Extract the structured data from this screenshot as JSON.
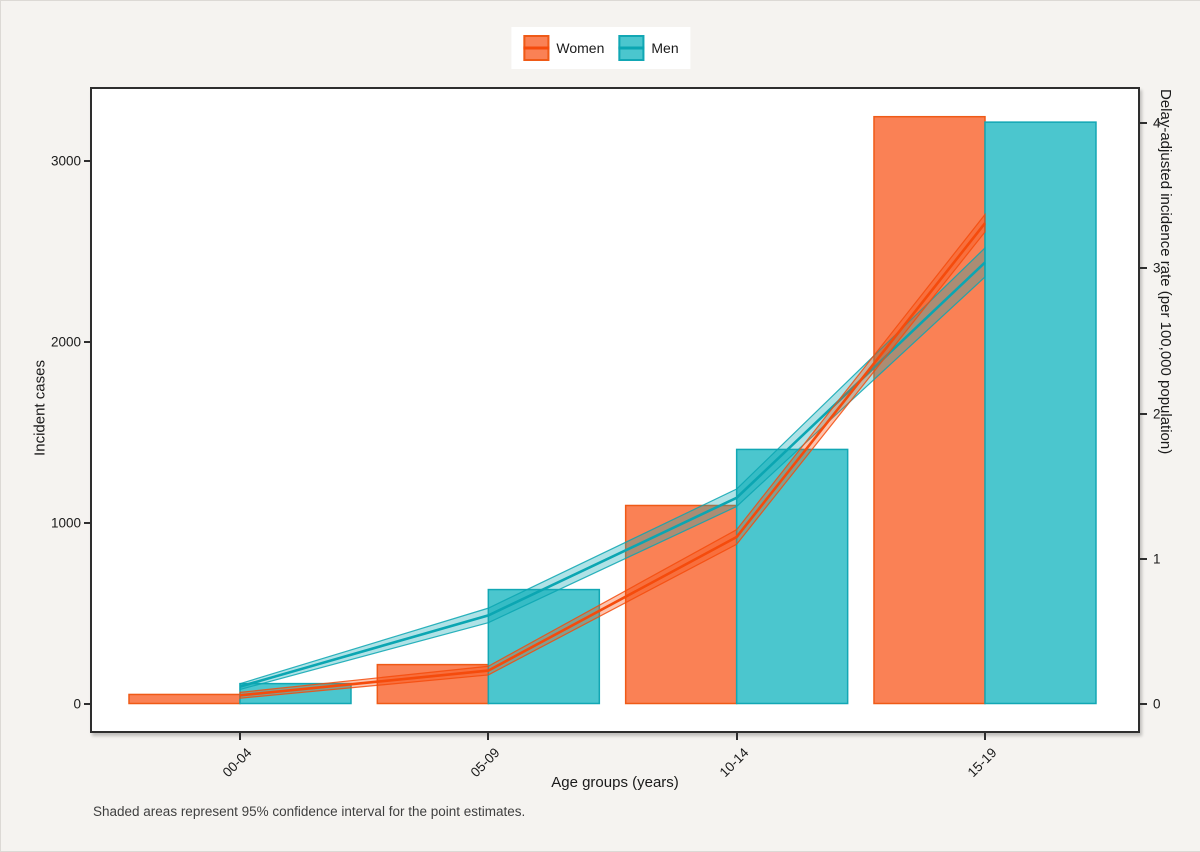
{
  "figure": {
    "legend": {
      "items": [
        {
          "label": "Women"
        },
        {
          "label": "Men"
        }
      ]
    },
    "axis_left": {
      "title": "Incident cases"
    },
    "axis_right": {
      "title": "Delay-adjusted incidence rate (per 100,000 population)"
    },
    "axis_x": {
      "title": "Age groups (years)"
    },
    "caption": "Shaded areas represent 95% confidence interval for the point estimates."
  },
  "colors": {
    "women_fill": "#FA8155",
    "women_stroke": "#EF5A17",
    "women_line": "#F54B0C",
    "men_fill": "#4BC6CE",
    "men_stroke": "#12A7B4",
    "men_line": "#0BA6B2",
    "panel_border": "#2E2E2E",
    "background": "#F5F3F0"
  },
  "chart_data": {
    "type": "bar+line dual-axis",
    "categories": [
      "00-04",
      "05-09",
      "10-14",
      "15-19"
    ],
    "bar_series": [
      {
        "name": "Women",
        "axis": "left",
        "values": [
          50,
          215,
          1095,
          3245
        ]
      },
      {
        "name": "Men",
        "axis": "left",
        "values": [
          110,
          630,
          1405,
          3215
        ]
      }
    ],
    "line_series": [
      {
        "name": "Women",
        "axis": "right",
        "values": [
          0.06,
          0.23,
          1.15,
          3.31
        ],
        "ci_lower": [
          0.04,
          0.2,
          1.1,
          3.25
        ],
        "ci_upper": [
          0.08,
          0.26,
          1.2,
          3.37
        ]
      },
      {
        "name": "Men",
        "axis": "right",
        "values": [
          0.12,
          0.61,
          1.42,
          3.04
        ],
        "ci_lower": [
          0.1,
          0.56,
          1.36,
          2.94
        ],
        "ci_upper": [
          0.14,
          0.66,
          1.48,
          3.14
        ]
      }
    ],
    "left_axis": {
      "label": "Incident cases",
      "ticks": [
        0,
        1000,
        2000,
        3000
      ],
      "ylim": [
        0,
        3340
      ]
    },
    "right_axis": {
      "label": "Delay-adjusted incidence rate (per 100,000 population)",
      "ticks": [
        0,
        1,
        2,
        3,
        4
      ],
      "ylim": [
        0,
        4.2
      ]
    },
    "xlabel": "Age groups (years)",
    "grid": false,
    "legend_position": "top"
  }
}
